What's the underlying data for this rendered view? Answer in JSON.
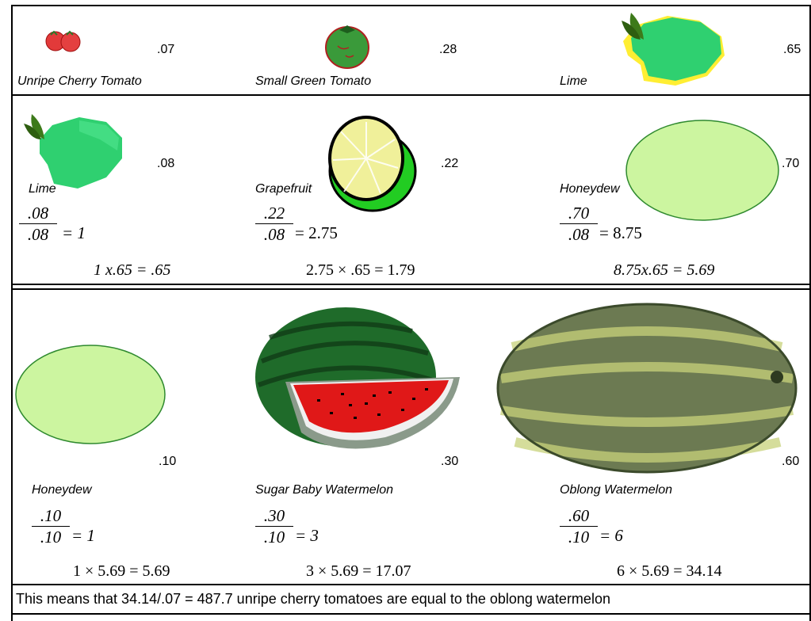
{
  "row1": {
    "cells": [
      {
        "name": "Unripe Cherry Tomato",
        "price": ".07",
        "icon": "cherry-tomato-icon"
      },
      {
        "name": "Small Green Tomato",
        "price": ".28",
        "icon": "green-tomato-icon"
      },
      {
        "name": "Lime",
        "price": ".65",
        "icon": "lime-icon"
      }
    ]
  },
  "row2": {
    "cells": [
      {
        "name": "Lime",
        "price": ".08",
        "icon": "lime-icon",
        "frac_num": ".08",
        "frac_den": ".08",
        "frac_result": "= 1",
        "calc": "1 x.65 = .65"
      },
      {
        "name": "Grapefruit",
        "price": ".22",
        "icon": "grapefruit-icon",
        "frac_num": ".22",
        "frac_den": ".08",
        "frac_result": "= 2.75",
        "calc": "2.75 × .65 = 1.79"
      },
      {
        "name": "Honeydew",
        "price": ".70",
        "icon": "honeydew-icon",
        "frac_num": ".70",
        "frac_den": ".08",
        "frac_result": "= 8.75",
        "calc": "8.75x.65 = 5.69"
      }
    ]
  },
  "row3": {
    "cells": [
      {
        "name": "Honeydew",
        "price": ".10",
        "icon": "honeydew-icon",
        "frac_num": ".10",
        "frac_den": ".10",
        "frac_result": "= 1",
        "calc": "1 × 5.69 = 5.69"
      },
      {
        "name": "Sugar Baby Watermelon",
        "price": ".30",
        "icon": "watermelon-slice-icon",
        "frac_num": ".30",
        "frac_den": ".10",
        "frac_result": "= 3",
        "calc": "3 × 5.69 = 17.07"
      },
      {
        "name": "Oblong Watermelon",
        "price": ".60",
        "icon": "oblong-watermelon-icon",
        "frac_num": ".60",
        "frac_den": ".10",
        "frac_result": "= 6",
        "calc": "6 × 5.69 = 34.14"
      }
    ]
  },
  "footer": {
    "text": "This means that 34.14/.07 = 487.7 unripe cherry tomatoes are equal to the oblong watermelon"
  },
  "colors": {
    "lime": "#33cc66",
    "honeydew": "#ccf5a0",
    "tomato_red": "#e23a3a",
    "watermelon_green": "#1f6b2a"
  }
}
